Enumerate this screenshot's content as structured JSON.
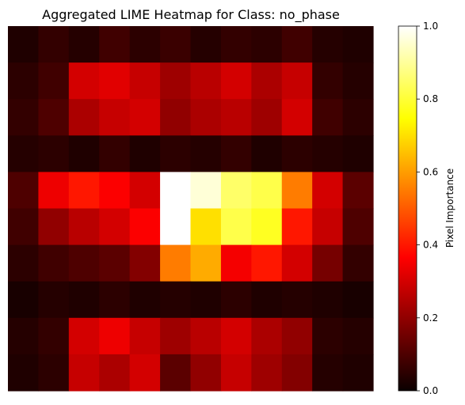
{
  "chart_data": {
    "type": "heatmap",
    "title": "Aggregated LIME Heatmap for Class: no_phase",
    "colormap": "hot",
    "axes_visible": false,
    "grid": false,
    "colorbar": {
      "label": "Pixel Importance",
      "range": [
        0.0,
        1.0
      ],
      "ticks": [
        "0.0",
        "0.2",
        "0.4",
        "0.6",
        "0.8",
        "1.0"
      ],
      "placement": "right"
    },
    "grid_rows": 10,
    "grid_cols": 12,
    "values": [
      [
        0.03,
        0.06,
        0.04,
        0.08,
        0.05,
        0.07,
        0.04,
        0.06,
        0.05,
        0.08,
        0.04,
        0.03
      ],
      [
        0.05,
        0.08,
        0.3,
        0.32,
        0.28,
        0.22,
        0.26,
        0.3,
        0.24,
        0.28,
        0.06,
        0.04
      ],
      [
        0.06,
        0.1,
        0.24,
        0.28,
        0.3,
        0.2,
        0.24,
        0.26,
        0.22,
        0.3,
        0.08,
        0.05
      ],
      [
        0.04,
        0.05,
        0.03,
        0.06,
        0.03,
        0.05,
        0.04,
        0.06,
        0.03,
        0.05,
        0.04,
        0.03
      ],
      [
        0.1,
        0.34,
        0.4,
        0.36,
        0.3,
        1.0,
        0.96,
        0.85,
        0.82,
        0.55,
        0.3,
        0.12
      ],
      [
        0.08,
        0.2,
        0.26,
        0.3,
        0.36,
        1.0,
        0.7,
        0.82,
        0.78,
        0.4,
        0.28,
        0.1
      ],
      [
        0.05,
        0.08,
        0.1,
        0.12,
        0.18,
        0.55,
        0.62,
        0.35,
        0.4,
        0.3,
        0.16,
        0.06
      ],
      [
        0.02,
        0.04,
        0.03,
        0.05,
        0.03,
        0.04,
        0.03,
        0.05,
        0.03,
        0.04,
        0.03,
        0.02
      ],
      [
        0.04,
        0.06,
        0.3,
        0.34,
        0.28,
        0.22,
        0.26,
        0.3,
        0.24,
        0.2,
        0.05,
        0.04
      ],
      [
        0.03,
        0.05,
        0.28,
        0.24,
        0.3,
        0.12,
        0.2,
        0.28,
        0.22,
        0.18,
        0.04,
        0.03
      ]
    ]
  }
}
